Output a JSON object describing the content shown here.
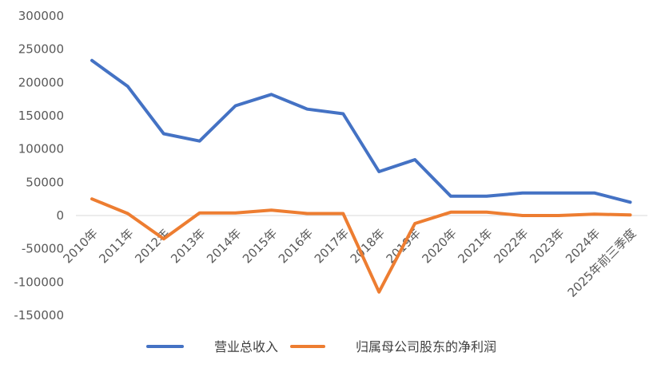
{
  "chart_data": {
    "type": "line",
    "categories": [
      "2010年",
      "2011年",
      "2012年",
      "2013年",
      "2014年",
      "2015年",
      "2016年",
      "2017年",
      "2018年",
      "2019年",
      "2020年",
      "2021年",
      "2022年",
      "2023年",
      "2024年",
      "2025年前三季度"
    ],
    "series": [
      {
        "name": "营业总收入",
        "color": "#4472C4",
        "values": [
          233000,
          194000,
          123000,
          112000,
          165000,
          182000,
          160000,
          153000,
          66000,
          84000,
          29000,
          29000,
          34000,
          34000,
          34000,
          20000
        ]
      },
      {
        "name": "归属母公司股东的净利润",
        "color": "#ED7D31",
        "values": [
          25000,
          3000,
          -35000,
          4000,
          4000,
          8000,
          3000,
          3000,
          -115000,
          -12000,
          5000,
          5000,
          0,
          0,
          2000,
          1000
        ]
      }
    ],
    "ylim": [
      -150000,
      300000
    ],
    "yticks": [
      "300000",
      "250000",
      "200000",
      "150000",
      "100000",
      "50000",
      "0",
      "-50000",
      "-100000",
      "-150000"
    ],
    "legend_position": "bottom",
    "grid": false
  }
}
